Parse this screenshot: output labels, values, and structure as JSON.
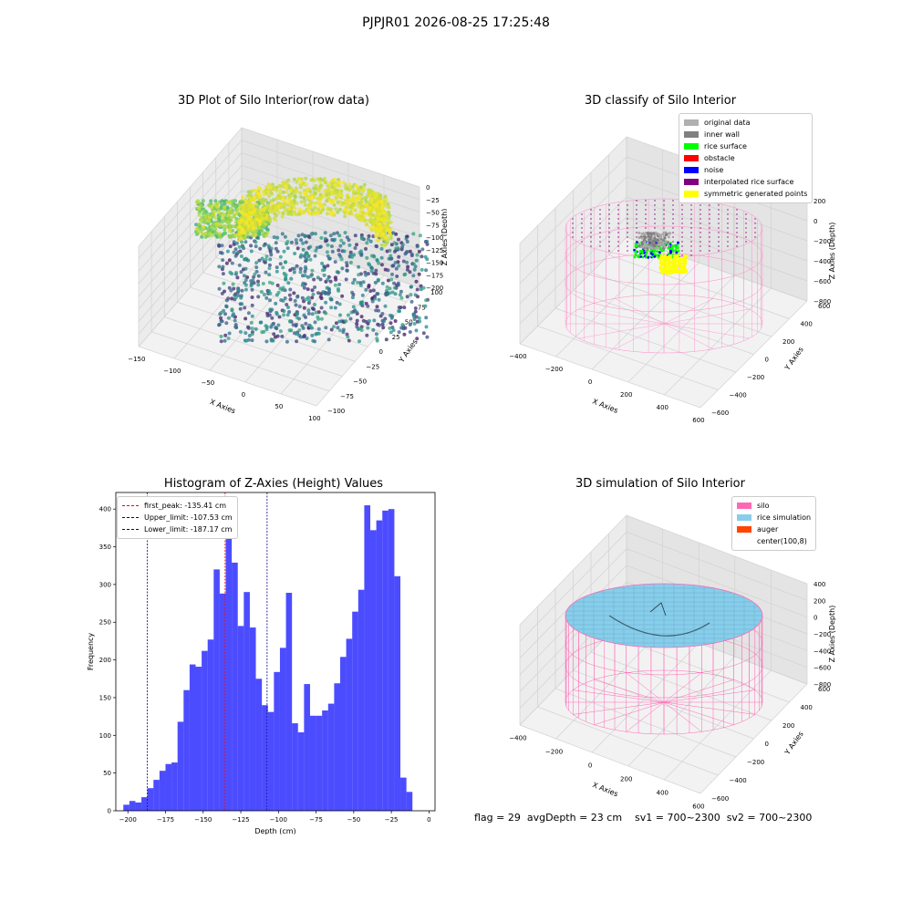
{
  "suptitle": "PJPJR01 2026-08-25 17:25:48",
  "status_text": "flag = 29  avgDepth = 23 cm    sv1 = 700~2300  sv2 = 700~2300",
  "chart_data": [
    {
      "type": "scatter",
      "title": "3D Plot of Silo Interior(row data)",
      "xlabel": "X Axies",
      "ylabel": "Y Axies",
      "zlabel": "Z Axies (Depth)",
      "x_ticks": [
        -150,
        -100,
        -50,
        0,
        50,
        100
      ],
      "y_ticks": [
        -100,
        -75,
        -50,
        -25,
        0,
        25,
        50,
        75,
        100
      ],
      "z_ticks": [
        0,
        -25,
        -50,
        -75,
        -100,
        -125,
        -150,
        -175,
        -200
      ],
      "colormap": "viridis"
    },
    {
      "type": "scatter",
      "title": "3D classify of Silo Interior",
      "xlabel": "X Axies",
      "ylabel": "Y Axies",
      "zlabel": "Z Axies (Depth)",
      "x_ticks": [
        -400,
        -200,
        0,
        200,
        400,
        600
      ],
      "y_ticks": [
        -600,
        -400,
        -200,
        0,
        200,
        400,
        600
      ],
      "z_ticks": [
        200,
        0,
        -200,
        -400,
        -600,
        -800
      ],
      "legend": [
        {
          "label": "original data",
          "color": "#b0b0b0"
        },
        {
          "label": "inner wall",
          "color": "#808080"
        },
        {
          "label": "rice surface",
          "color": "#00ff00"
        },
        {
          "label": "obstacle",
          "color": "#ff0000"
        },
        {
          "label": "noise",
          "color": "#0000ff"
        },
        {
          "label": "interpolated rice surface",
          "color": "#800080"
        },
        {
          "label": "symmetric generated points",
          "color": "#ffff00"
        }
      ]
    },
    {
      "type": "bar",
      "title": "Histogram of Z-Axies (Height) Values",
      "xlabel": "Depth (cm)",
      "ylabel": "Frequency",
      "x_range": [
        -208,
        4
      ],
      "ylim": [
        0,
        422
      ],
      "x_ticks": [
        -200,
        -175,
        -150,
        -125,
        -100,
        -75,
        -50,
        -25,
        0
      ],
      "y_ticks": [
        0,
        50,
        100,
        150,
        200,
        250,
        300,
        350,
        400
      ],
      "bin_start": -203,
      "bin_width": 4,
      "values": [
        8,
        13,
        11,
        18,
        30,
        41,
        53,
        62,
        64,
        118,
        160,
        194,
        191,
        212,
        227,
        320,
        288,
        405,
        329,
        245,
        290,
        243,
        175,
        140,
        131,
        184,
        216,
        289,
        116,
        104,
        168,
        126,
        126,
        133,
        142,
        169,
        204,
        228,
        264,
        293,
        405,
        372,
        385,
        398,
        400,
        311,
        44,
        25
      ],
      "bar_color": "#0000ff",
      "vlines": [
        {
          "label": "first_peak: -135.41 cm",
          "x": -135.41,
          "color": "#ff0000"
        },
        {
          "label": "Upper_limit: -107.53 cm",
          "x": -107.53,
          "color": "#00008b"
        },
        {
          "label": "Lower_limit: -187.17 cm",
          "x": -187.17,
          "color": "#00008b"
        }
      ]
    },
    {
      "type": "surface",
      "title": "3D simulation of Silo Interior",
      "xlabel": "X Axies",
      "ylabel": "Y Axies",
      "zlabel": "Z Axies (Depth)",
      "x_ticks": [
        -400,
        -200,
        0,
        200,
        400,
        600
      ],
      "y_ticks": [
        -600,
        -400,
        -200,
        0,
        200,
        400,
        600
      ],
      "z_ticks": [
        400,
        200,
        0,
        -200,
        -400,
        -600,
        -800
      ],
      "legend": [
        {
          "label": "silo",
          "color": "#ff69b4"
        },
        {
          "label": "rice simulation",
          "color": "#87ceeb"
        },
        {
          "label": "auger",
          "color": "#ff4500"
        },
        {
          "label": "center(100,8)",
          "color": "#ffffff"
        }
      ]
    }
  ]
}
